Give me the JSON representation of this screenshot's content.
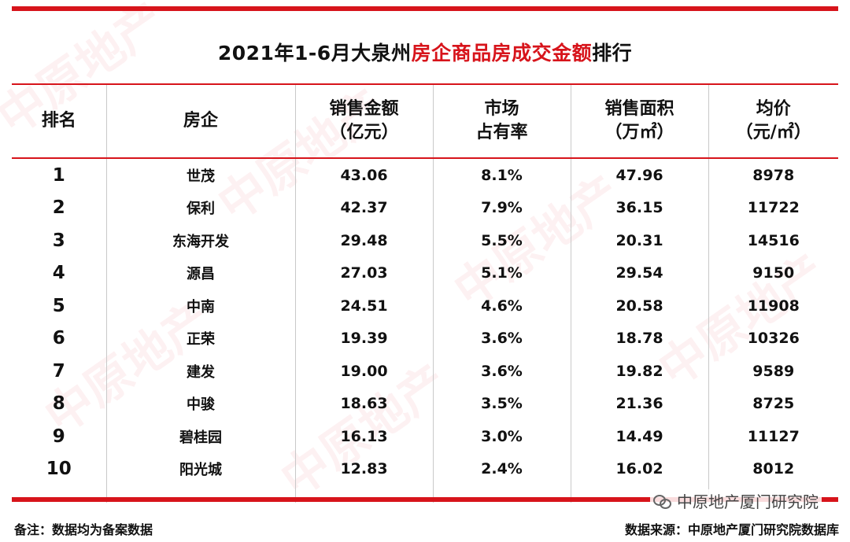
{
  "title": {
    "prefix": "2021年1-6月大泉州",
    "highlight": "房企商品房成交金额",
    "suffix": "排行",
    "highlight_color": "#d7141b"
  },
  "table": {
    "headers": [
      {
        "line1": "排名",
        "line2": ""
      },
      {
        "line1": "房企",
        "line2": ""
      },
      {
        "line1": "销售金额",
        "line2": "（亿元）"
      },
      {
        "line1": "市场",
        "line2": "占有率"
      },
      {
        "line1": "销售面积",
        "line2": "（万㎡）"
      },
      {
        "line1": "均价",
        "line2": "（元/㎡）"
      }
    ],
    "rows": [
      {
        "rank": "1",
        "company": "世茂",
        "amount": "43.06",
        "share": "8.1%",
        "area": "47.96",
        "price": "8978"
      },
      {
        "rank": "2",
        "company": "保利",
        "amount": "42.37",
        "share": "7.9%",
        "area": "36.15",
        "price": "11722"
      },
      {
        "rank": "3",
        "company": "东海开发",
        "amount": "29.48",
        "share": "5.5%",
        "area": "20.31",
        "price": "14516"
      },
      {
        "rank": "4",
        "company": "源昌",
        "amount": "27.03",
        "share": "5.1%",
        "area": "29.54",
        "price": "9150"
      },
      {
        "rank": "5",
        "company": "中南",
        "amount": "24.51",
        "share": "4.6%",
        "area": "20.58",
        "price": "11908"
      },
      {
        "rank": "6",
        "company": "正荣",
        "amount": "19.39",
        "share": "3.6%",
        "area": "18.78",
        "price": "10326"
      },
      {
        "rank": "7",
        "company": "建发",
        "amount": "19.00",
        "share": "3.6%",
        "area": "19.82",
        "price": "9589"
      },
      {
        "rank": "8",
        "company": "中骏",
        "amount": "18.63",
        "share": "3.5%",
        "area": "21.36",
        "price": "8725"
      },
      {
        "rank": "9",
        "company": "碧桂园",
        "amount": "16.13",
        "share": "3.0%",
        "area": "14.49",
        "price": "11127"
      },
      {
        "rank": "10",
        "company": "阳光城",
        "amount": "12.83",
        "share": "2.4%",
        "area": "16.02",
        "price": "8012"
      }
    ]
  },
  "footer": {
    "note": "备注：数据均为备案数据",
    "source": "数据来源：中原地产厦门研究院数据库",
    "brand": "中原地产厦门研究院",
    "brand_icon": "wechat-icon"
  },
  "watermark": {
    "text": "中原地产",
    "color": "#d7141b"
  }
}
